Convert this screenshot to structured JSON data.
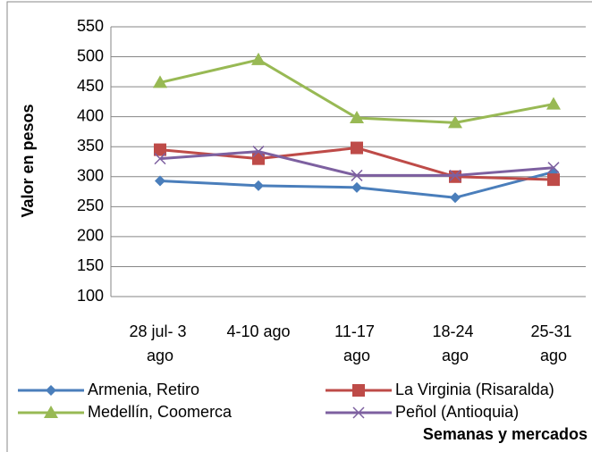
{
  "chart_data": {
    "type": "line",
    "x_label": "Semanas y mercados",
    "y_label": "Valor en pesos",
    "categories": [
      "28 jul- 3 ago",
      "4-10 ago",
      "11-17 ago",
      "18-24 ago",
      "25-31 ago"
    ],
    "series": [
      {
        "name": "Armenia, Retiro",
        "color": "#4a7ebb",
        "values": [
          293,
          285,
          282,
          265,
          308
        ]
      },
      {
        "name": "La Virginia (Risaralda)",
        "color": "#be4b48",
        "values": [
          345,
          330,
          348,
          300,
          295
        ]
      },
      {
        "name": "Medellín, Coomerca",
        "color": "#98b954",
        "values": [
          457,
          495,
          398,
          390,
          421
        ]
      },
      {
        "name": "Peñol (Antioquia)",
        "color": "#7d60a0",
        "values": [
          330,
          342,
          302,
          302,
          315
        ]
      }
    ],
    "ylim": [
      100,
      550
    ],
    "yticks": [
      100,
      150,
      200,
      250,
      300,
      350,
      400,
      450,
      500,
      550
    ],
    "grid": true
  }
}
